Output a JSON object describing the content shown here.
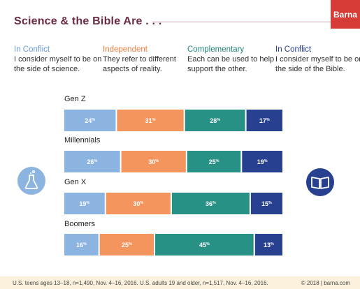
{
  "title": "Science & the Bible Are . . .",
  "brand": "Barna",
  "legend": [
    {
      "head": "In Conflict",
      "desc": "I consider myself to be on the side of science.",
      "color": "#8cb4e1"
    },
    {
      "head": "Independent",
      "desc": "They refer to different aspects of reality.",
      "color": "#f4955e"
    },
    {
      "head": "Complementary",
      "desc": "Each can be used to help support the other.",
      "color": "#279186"
    },
    {
      "head": "In Conflict",
      "desc": "I consider myself to be on the side of the Bible.",
      "color": "#27408f"
    }
  ],
  "icons": {
    "left": "flask-icon",
    "right": "open-book-icon"
  },
  "chart_data": {
    "type": "bar",
    "orientation": "horizontal",
    "stacked": true,
    "unit": "%",
    "categories": [
      "Gen Z",
      "Millennials",
      "Gen X",
      "Boomers"
    ],
    "series": [
      {
        "name": "In Conflict: I consider myself to be on the side of science.",
        "values": [
          24,
          26,
          19,
          16
        ]
      },
      {
        "name": "Independent: They refer to different aspects of reality.",
        "values": [
          31,
          30,
          30,
          25
        ]
      },
      {
        "name": "Complementary: Each can be used to help support the other.",
        "values": [
          28,
          25,
          36,
          45
        ]
      },
      {
        "name": "In Conflict: I consider myself to be on the side of the Bible.",
        "values": [
          17,
          19,
          15,
          13
        ]
      }
    ],
    "colors": [
      "#8cb4e1",
      "#f4955e",
      "#279186",
      "#27408f"
    ]
  },
  "footer": {
    "source": "U.S. teens ages 13–18, n=1,490, Nov. 4–16, 2016. U.S. adults 19 and older, n=1,517, Nov. 4–16, 2016.",
    "copyright": "© 2018 | barna.com"
  }
}
